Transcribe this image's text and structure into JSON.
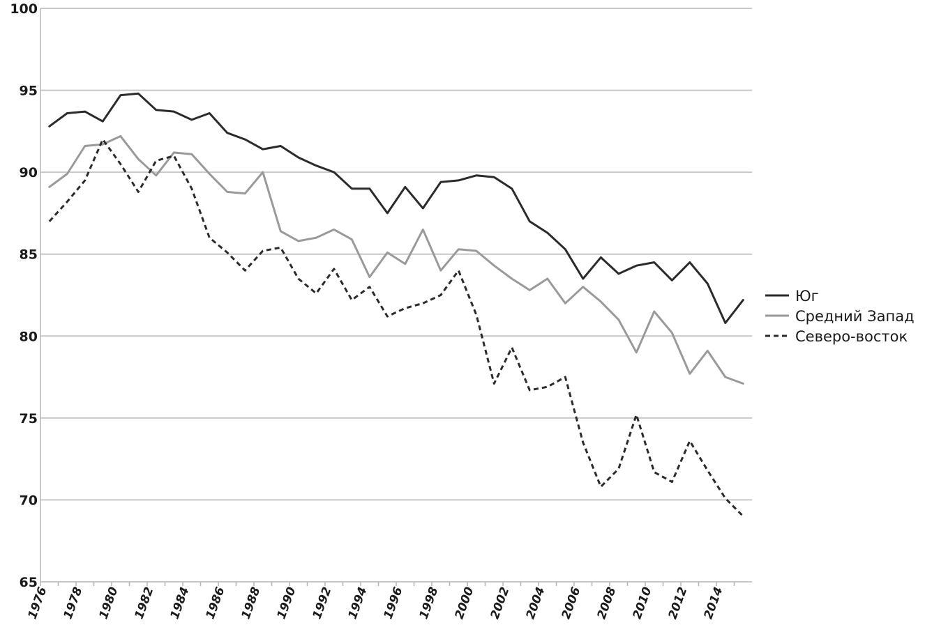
{
  "chart_data": {
    "type": "line",
    "title": "",
    "xlabel": "",
    "ylabel": "",
    "ylim": [
      65,
      100
    ],
    "yticks": [
      65,
      70,
      75,
      80,
      85,
      90,
      95,
      100
    ],
    "x": [
      1976,
      1977,
      1978,
      1979,
      1980,
      1981,
      1982,
      1983,
      1984,
      1985,
      1986,
      1987,
      1988,
      1989,
      1990,
      1991,
      1992,
      1993,
      1994,
      1995,
      1996,
      1997,
      1998,
      1999,
      2000,
      2001,
      2002,
      2003,
      2004,
      2005,
      2006,
      2007,
      2008,
      2009,
      2010,
      2011,
      2012,
      2013,
      2014,
      2015
    ],
    "xticks": [
      1976,
      1978,
      1980,
      1982,
      1984,
      1986,
      1988,
      1990,
      1992,
      1994,
      1996,
      1998,
      2000,
      2002,
      2004,
      2006,
      2008,
      2010,
      2012,
      2014
    ],
    "grid": "horizontal",
    "legend_position": "right",
    "series": [
      {
        "name": "Юг",
        "color": "#2b2b2b",
        "style": "solid",
        "values": [
          92.8,
          93.6,
          93.7,
          93.1,
          94.7,
          94.8,
          93.8,
          93.7,
          93.2,
          93.6,
          92.4,
          92.0,
          91.4,
          91.6,
          90.9,
          90.4,
          90.0,
          89.0,
          89.0,
          87.5,
          89.1,
          87.8,
          89.4,
          89.5,
          89.8,
          89.7,
          89.0,
          87.0,
          86.3,
          85.3,
          83.5,
          84.8,
          83.8,
          84.3,
          84.5,
          83.4,
          84.5,
          83.2,
          80.8,
          82.2
        ]
      },
      {
        "name": "Средний Запад",
        "color": "#9a9a9a",
        "style": "solid",
        "values": [
          89.1,
          89.9,
          91.6,
          91.7,
          92.2,
          90.8,
          89.8,
          91.2,
          91.1,
          89.9,
          88.8,
          88.7,
          90.0,
          86.4,
          85.8,
          86.0,
          86.5,
          85.9,
          83.6,
          85.1,
          84.4,
          86.5,
          84.0,
          85.3,
          85.2,
          84.3,
          83.5,
          82.8,
          83.5,
          82.0,
          83.0,
          82.1,
          81.0,
          79.0,
          81.5,
          80.2,
          77.7,
          79.1,
          77.5,
          77.1
        ]
      },
      {
        "name": "Северо-восток",
        "color": "#2b2b2b",
        "style": "dashed",
        "values": [
          87.0,
          88.2,
          89.5,
          92.0,
          90.5,
          88.8,
          90.7,
          91.0,
          89.0,
          86.0,
          85.1,
          84.0,
          85.2,
          85.4,
          83.5,
          82.6,
          84.1,
          82.2,
          83.0,
          81.2,
          81.7,
          82.0,
          82.5,
          84.0,
          81.3,
          77.1,
          79.3,
          76.7,
          76.9,
          77.5,
          73.5,
          70.8,
          71.9,
          75.2,
          71.7,
          71.1,
          73.6,
          71.8,
          70.1,
          69.0
        ]
      }
    ]
  }
}
